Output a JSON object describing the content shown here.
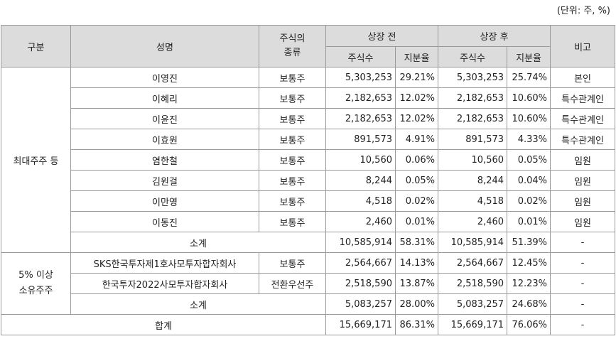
{
  "unit_note": "(단위: 주, %)",
  "headers": {
    "category": "구분",
    "name": "성명",
    "stock_type_l1": "주식의",
    "stock_type_l2": "종류",
    "before": "상장 전",
    "after": "상장 후",
    "shares": "주식수",
    "ratio": "지분율",
    "note": "비고"
  },
  "group1": {
    "label": "최대주주 등",
    "rows": [
      {
        "name": "이영진",
        "type": "보통주",
        "before_shares": "5,303,253",
        "before_ratio": "29.21%",
        "after_shares": "5,303,253",
        "after_ratio": "25.74%",
        "note": "본인"
      },
      {
        "name": "이혜리",
        "type": "보통주",
        "before_shares": "2,182,653",
        "before_ratio": "12.02%",
        "after_shares": "2,182,653",
        "after_ratio": "10.60%",
        "note": "특수관계인"
      },
      {
        "name": "이윤진",
        "type": "보통주",
        "before_shares": "2,182,653",
        "before_ratio": "12.02%",
        "after_shares": "2,182,653",
        "after_ratio": "10.60%",
        "note": "특수관계인"
      },
      {
        "name": "이효원",
        "type": "보통주",
        "before_shares": "891,573",
        "before_ratio": "4.91%",
        "after_shares": "891,573",
        "after_ratio": "4.33%",
        "note": "특수관계인"
      },
      {
        "name": "염한철",
        "type": "보통주",
        "before_shares": "10,560",
        "before_ratio": "0.06%",
        "after_shares": "10,560",
        "after_ratio": "0.05%",
        "note": "임원"
      },
      {
        "name": "김원걸",
        "type": "보통주",
        "before_shares": "8,244",
        "before_ratio": "0.05%",
        "after_shares": "8,244",
        "after_ratio": "0.04%",
        "note": "임원"
      },
      {
        "name": "이만영",
        "type": "보통주",
        "before_shares": "4,518",
        "before_ratio": "0.02%",
        "after_shares": "4,518",
        "after_ratio": "0.02%",
        "note": "임원"
      },
      {
        "name": "이동진",
        "type": "보통주",
        "before_shares": "2,460",
        "before_ratio": "0.01%",
        "after_shares": "2,460",
        "after_ratio": "0.01%",
        "note": "임원"
      }
    ],
    "subtotal": {
      "label": "소계",
      "before_shares": "10,585,914",
      "before_ratio": "58.31%",
      "after_shares": "10,585,914",
      "after_ratio": "51.39%",
      "note": "-"
    }
  },
  "group2": {
    "label_l1": "5% 이상",
    "label_l2": "소유주주",
    "rows": [
      {
        "name": "SKS한국투자제1호사모투자합자회사",
        "type": "보통주",
        "before_shares": "2,564,667",
        "before_ratio": "14.13%",
        "after_shares": "2,564,667",
        "after_ratio": "12.45%",
        "note": "-"
      },
      {
        "name": "한국투자2022사모투자합자회사",
        "type": "전환우선주",
        "before_shares": "2,518,590",
        "before_ratio": "13.87%",
        "after_shares": "2,518,590",
        "after_ratio": "12.23%",
        "note": "-"
      }
    ],
    "subtotal": {
      "label": "소계",
      "before_shares": "5,083,257",
      "before_ratio": "28.00%",
      "after_shares": "5,083,257",
      "after_ratio": "24.68%",
      "note": "-"
    }
  },
  "total": {
    "label": "합계",
    "before_shares": "15,669,171",
    "before_ratio": "86.31%",
    "after_shares": "15,669,171",
    "after_ratio": "76.06%",
    "note": "-"
  }
}
